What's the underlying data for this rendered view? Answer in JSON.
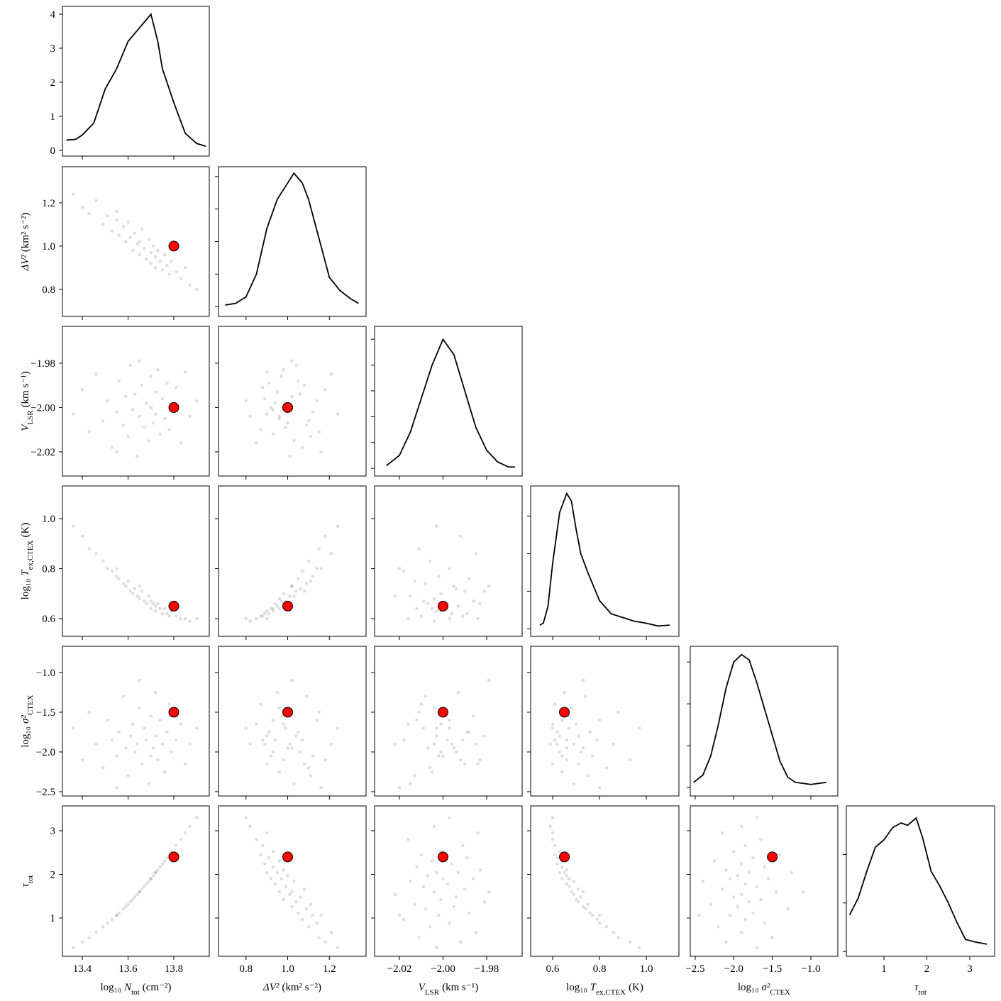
{
  "chart_data": {
    "type": "corner",
    "sample_color": "#000000",
    "truth_color": "#ff0000",
    "line_color": "#000000",
    "params": [
      {
        "label": {
          "pre": "log₁₀",
          "sym": "N",
          "sub": "tot",
          "post": "(cm⁻²)"
        },
        "truth": 13.8,
        "xlim": [
          13.313,
          13.955
        ],
        "xticks": [
          13.4,
          13.6,
          13.8
        ],
        "samples": [
          13.36,
          13.4,
          13.43,
          13.46,
          13.49,
          13.51,
          13.53,
          13.55,
          13.56,
          13.58,
          13.59,
          13.6,
          13.61,
          13.62,
          13.63,
          13.64,
          13.65,
          13.66,
          13.67,
          13.68,
          13.69,
          13.7,
          13.7,
          13.71,
          13.72,
          13.72,
          13.73,
          13.74,
          13.75,
          13.76,
          13.77,
          13.78,
          13.79,
          13.81,
          13.83,
          13.85,
          13.87,
          13.9,
          13.65,
          13.55
        ],
        "density": {
          "x": [
            13.33,
            13.37,
            13.4,
            13.45,
            13.5,
            13.55,
            13.6,
            13.65,
            13.7,
            13.73,
            13.75,
            13.8,
            13.85,
            13.9,
            13.94
          ],
          "y": [
            0.3,
            0.32,
            0.45,
            0.8,
            1.8,
            2.4,
            3.2,
            3.6,
            4.0,
            3.2,
            2.4,
            1.4,
            0.5,
            0.2,
            0.12
          ],
          "ylim": [
            -0.17,
            4.23
          ],
          "yticks": [
            0,
            1,
            2,
            3,
            4
          ],
          "show_ytick_labels": true
        }
      },
      {
        "label": {
          "sym": "ΔV²",
          "post": "(km² s⁻²)"
        },
        "truth": 1.0,
        "xlim": [
          0.668,
          1.376
        ],
        "ylim": [
          0.675,
          1.367
        ],
        "xticks": [
          0.8,
          {
            "value": 1.0,
            "label": "1.0"
          },
          1.2
        ],
        "samples": [
          1.24,
          1.18,
          1.15,
          1.21,
          1.1,
          1.14,
          1.07,
          1.12,
          1.05,
          1.09,
          1.02,
          1.11,
          1.04,
          0.98,
          1.06,
          1.01,
          0.96,
          1.08,
          0.99,
          0.94,
          1.03,
          0.97,
          0.92,
          1.0,
          0.95,
          0.9,
          0.98,
          0.93,
          0.89,
          0.96,
          0.91,
          0.87,
          0.93,
          0.88,
          0.85,
          0.9,
          0.82,
          0.8,
          1.02,
          1.16
        ],
        "density": {
          "x": [
            0.7,
            0.75,
            0.8,
            0.85,
            0.9,
            0.95,
            1.0,
            1.03,
            1.07,
            1.1,
            1.15,
            1.2,
            1.25,
            1.3,
            1.34
          ],
          "y": [
            0.05,
            0.1,
            0.3,
            1.0,
            2.4,
            3.3,
            3.8,
            4.1,
            3.8,
            3.3,
            2.1,
            0.9,
            0.5,
            0.25,
            0.1
          ],
          "ylim": [
            -0.3,
            4.3
          ],
          "yticks": [
            0,
            1,
            2,
            3,
            4
          ],
          "show_ytick_labels": false
        }
      },
      {
        "label": {
          "sym": "V",
          "sub": "LSR",
          "post": "(km s⁻¹)"
        },
        "truth": -2.0,
        "xlim": [
          -2.0314,
          -1.9637
        ],
        "ylim": [
          -2.0309,
          -1.9634
        ],
        "xticks": [
          {
            "value": -2.02,
            "label": "−2.02"
          },
          {
            "value": -2.0,
            "label": "−2.00"
          },
          {
            "value": -1.98,
            "label": "−1.98"
          }
        ],
        "samples": [
          -2.003,
          -1.992,
          -2.011,
          -1.985,
          -2.006,
          -1.997,
          -2.018,
          -2.002,
          -1.988,
          -2.008,
          -1.995,
          -2.013,
          -1.981,
          -2.001,
          -1.994,
          -2.022,
          -2.004,
          -1.99,
          -2.009,
          -1.998,
          -2.015,
          -1.986,
          -2.0,
          -2.007,
          -1.993,
          -2.003,
          -1.983,
          -2.012,
          -1.996,
          -2.005,
          -1.989,
          -2.01,
          -2.001,
          -1.991,
          -2.016,
          -1.984,
          -2.004,
          -1.997,
          -1.979,
          -2.02
        ],
        "density": {
          "x": [
            -2.026,
            -2.02,
            -2.015,
            -2.01,
            -2.005,
            -2.0,
            -1.995,
            -1.99,
            -1.985,
            -1.98,
            -1.975,
            -1.97,
            -1.967
          ],
          "y": [
            1,
            5,
            14,
            27,
            40,
            50,
            44,
            30,
            16,
            7,
            2.5,
            0.5,
            0.5
          ],
          "ylim": [
            -3,
            55
          ],
          "yticks": [
            0,
            10,
            20,
            30,
            40,
            50
          ],
          "show_ytick_labels": false
        }
      },
      {
        "label": {
          "pre": "log₁₀",
          "sym": "T",
          "sub": "ex,CTEX",
          "post": "(K)"
        },
        "truth": 0.65,
        "xlim": [
          0.506,
          1.139
        ],
        "ylim": [
          0.529,
          1.131
        ],
        "xticks": [
          0.6,
          0.8,
          {
            "value": 1.0,
            "label": "1.0"
          }
        ],
        "samples": [
          0.97,
          0.93,
          0.88,
          0.86,
          0.83,
          0.8,
          0.79,
          0.77,
          0.76,
          0.74,
          0.73,
          0.75,
          0.71,
          0.7,
          0.72,
          0.69,
          0.68,
          0.71,
          0.67,
          0.66,
          0.69,
          0.67,
          0.64,
          0.66,
          0.65,
          0.63,
          0.66,
          0.64,
          0.62,
          0.64,
          0.62,
          0.61,
          0.63,
          0.61,
          0.6,
          0.6,
          0.59,
          0.6,
          0.73,
          0.8
        ],
        "density": {
          "x": [
            0.545,
            0.56,
            0.58,
            0.6,
            0.63,
            0.66,
            0.68,
            0.7,
            0.72,
            0.75,
            0.8,
            0.85,
            0.9,
            0.95,
            1.0,
            1.05,
            1.1
          ],
          "y": [
            0.2,
            0.3,
            1.2,
            3.5,
            6.2,
            7.2,
            6.8,
            5.3,
            4.0,
            3.0,
            1.5,
            0.8,
            0.6,
            0.4,
            0.3,
            0.15,
            0.2
          ],
          "ylim": [
            -0.4,
            7.6
          ],
          "yticks": [
            0,
            2,
            4,
            6
          ],
          "show_ytick_labels": false
        }
      },
      {
        "label": {
          "pre": "log₁₀",
          "sym": "σ²",
          "sub": "CTEX"
        },
        "truth": -1.5,
        "xlim": [
          -2.564,
          -0.65
        ],
        "ylim": [
          -2.554,
          -0.67
        ],
        "xticks": [
          {
            "value": -2.5,
            "label": "−2.5"
          },
          {
            "value": -2.0,
            "label": "−2.0"
          },
          {
            "value": -1.5,
            "label": "−1.5"
          },
          {
            "value": -1.0,
            "label": "−1.0"
          }
        ],
        "samples": [
          -1.7,
          -2.1,
          -1.5,
          -1.9,
          -2.2,
          -1.6,
          -1.85,
          -2.05,
          -1.75,
          -1.3,
          -1.95,
          -2.3,
          -1.8,
          -1.65,
          -2.0,
          -1.9,
          -1.45,
          -2.15,
          -1.7,
          -1.85,
          -2.4,
          -1.55,
          -2.05,
          -1.95,
          -1.25,
          -1.8,
          -2.1,
          -1.6,
          -1.9,
          -2.25,
          -1.75,
          -1.4,
          -2.0,
          -1.85,
          -1.65,
          -2.15,
          -1.9,
          -1.7,
          -1.1,
          -2.45
        ],
        "density": {
          "x": [
            -2.52,
            -2.4,
            -2.3,
            -2.2,
            -2.1,
            -2.0,
            -1.9,
            -1.8,
            -1.7,
            -1.6,
            -1.5,
            -1.4,
            -1.3,
            -1.2,
            -1.0,
            -0.8
          ],
          "y": [
            0.05,
            0.12,
            0.3,
            0.6,
            0.95,
            1.2,
            1.27,
            1.22,
            1.0,
            0.75,
            0.5,
            0.25,
            0.1,
            0.05,
            0.03,
            0.05
          ],
          "ylim": [
            -0.08,
            1.35
          ],
          "yticks": [
            0,
            0.4,
            0.8,
            1.2
          ],
          "show_ytick_labels": false
        }
      },
      {
        "label": {
          "sym": "τ",
          "sub": "tot"
        },
        "truth": 2.4,
        "xlim": [
          0.124,
          3.579
        ],
        "ylim": [
          0.122,
          3.569
        ],
        "xticks": [
          1,
          2,
          3
        ],
        "samples": [
          0.32,
          0.45,
          0.55,
          0.67,
          0.8,
          0.88,
          0.97,
          1.06,
          1.11,
          1.21,
          1.26,
          1.31,
          1.37,
          1.42,
          1.48,
          1.54,
          1.6,
          1.66,
          1.72,
          1.78,
          1.84,
          1.9,
          1.9,
          1.97,
          2.04,
          2.04,
          2.1,
          2.17,
          2.24,
          2.31,
          2.38,
          2.45,
          2.52,
          2.66,
          2.8,
          2.95,
          3.1,
          3.3,
          1.6,
          1.06
        ],
        "density": {
          "x": [
            0.2,
            0.4,
            0.6,
            0.8,
            1.0,
            1.2,
            1.4,
            1.55,
            1.75,
            1.9,
            2.1,
            2.3,
            2.5,
            2.7,
            2.9,
            3.1,
            3.4
          ],
          "y": [
            0.15,
            0.22,
            0.33,
            0.43,
            0.46,
            0.51,
            0.53,
            0.52,
            0.55,
            0.47,
            0.33,
            0.27,
            0.2,
            0.12,
            0.05,
            0.04,
            0.03
          ],
          "ylim": [
            -0.02,
            0.6
          ],
          "yticks": [
            0,
            0.2,
            0.4
          ],
          "show_ytick_labels": false
        }
      }
    ]
  }
}
